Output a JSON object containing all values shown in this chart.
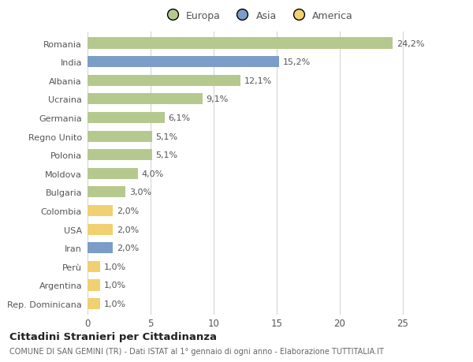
{
  "countries": [
    "Romania",
    "India",
    "Albania",
    "Ucraina",
    "Germania",
    "Regno Unito",
    "Polonia",
    "Moldova",
    "Bulgaria",
    "Colombia",
    "USA",
    "Iran",
    "Perù",
    "Argentina",
    "Rep. Dominicana"
  ],
  "values": [
    24.2,
    15.2,
    12.1,
    9.1,
    6.1,
    5.1,
    5.1,
    4.0,
    3.0,
    2.0,
    2.0,
    2.0,
    1.0,
    1.0,
    1.0
  ],
  "labels": [
    "24,2%",
    "15,2%",
    "12,1%",
    "9,1%",
    "6,1%",
    "5,1%",
    "5,1%",
    "4,0%",
    "3,0%",
    "2,0%",
    "2,0%",
    "2,0%",
    "1,0%",
    "1,0%",
    "1,0%"
  ],
  "continent": [
    "Europa",
    "Asia",
    "Europa",
    "Europa",
    "Europa",
    "Europa",
    "Europa",
    "Europa",
    "Europa",
    "America",
    "America",
    "Asia",
    "America",
    "America",
    "America"
  ],
  "colors": {
    "Europa": "#b5c98e",
    "Asia": "#7b9dc7",
    "America": "#f0d070"
  },
  "legend": [
    "Europa",
    "Asia",
    "America"
  ],
  "legend_colors": [
    "#b5c98e",
    "#7b9dc7",
    "#f0d070"
  ],
  "title1": "Cittadini Stranieri per Cittadinanza",
  "title2": "COMUNE DI SAN GEMINI (TR) - Dati ISTAT al 1° gennaio di ogni anno - Elaborazione TUTTITALIA.IT",
  "xlim": [
    0,
    27
  ],
  "xticks": [
    0,
    5,
    10,
    15,
    20,
    25
  ],
  "bg_color": "#ffffff",
  "grid_color": "#d5d5d5",
  "bar_height": 0.6
}
